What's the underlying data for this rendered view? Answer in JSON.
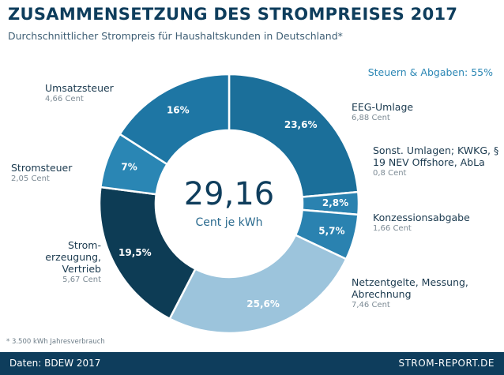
{
  "chart_data": {
    "type": "donut",
    "title": "ZUSAMMENSETZUNG DES STROMPREISES 2017",
    "subtitle": "Durchschnittlicher Strompreis für Haushaltskunden in Deutschland*",
    "annotation": "Steuern & Abgaben: 55%",
    "total": 29.16,
    "total_label": "29,16",
    "total_unit": "Cent je kWh",
    "footnote": "* 3.500 kWh Jahresverbrauch",
    "source": "Daten: BDEW 2017",
    "brand": "STROM-REPORT.DE",
    "categories": [
      "EEG-Umlage",
      "Sonst. Umlagen; KWKG, § 19 NEV Offshore, AbLa",
      "Konzessionsabgabe",
      "Netzentgelte, Messung, Abrechnung",
      "Strom- erzeugung, Vertrieb",
      "Stromsteuer",
      "Umsatzsteuer"
    ],
    "values": [
      23.6,
      2.8,
      5.7,
      25.6,
      19.5,
      7,
      16
    ],
    "value_labels": [
      "23,6%",
      "2,8%",
      "5,7%",
      "25,6%",
      "19,5%",
      "7%",
      "16%"
    ],
    "cents": [
      6.88,
      0.8,
      1.66,
      7.46,
      5.67,
      2.05,
      4.66
    ],
    "cent_labels": [
      "6,88 Cent",
      "0,8 Cent",
      "1,66 Cent",
      "7,46 Cent",
      "5,67 Cent",
      "2,05 Cent",
      "4,66 Cent"
    ],
    "colors": [
      "#1b6f9a",
      "#2a82b0",
      "#2a82b0",
      "#9cc4dc",
      "#0d3c55",
      "#2a86b4",
      "#1e76a4"
    ]
  }
}
